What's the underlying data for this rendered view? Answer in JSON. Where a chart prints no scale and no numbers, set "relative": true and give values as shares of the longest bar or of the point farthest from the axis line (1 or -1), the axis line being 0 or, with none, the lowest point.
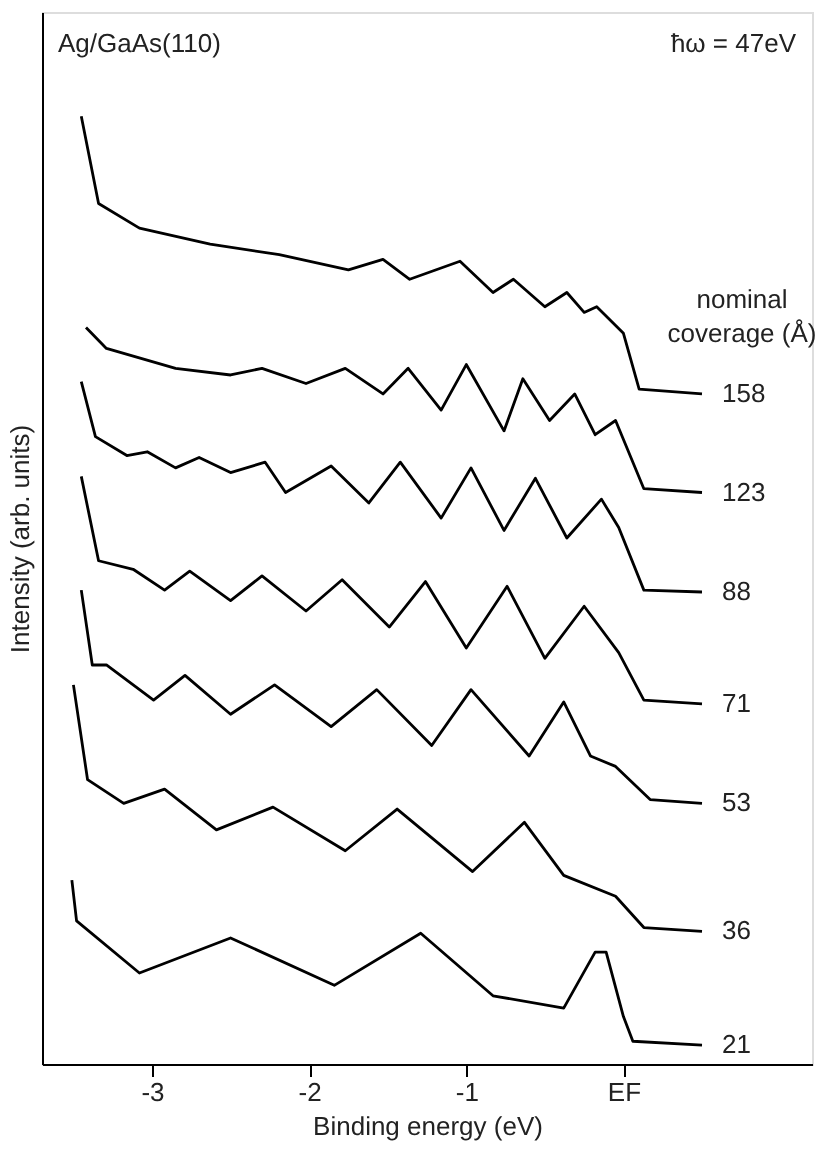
{
  "chart_data": {
    "type": "line",
    "relative": true,
    "xlabel": "Binding energy (eV)",
    "ylabel": "Intensity (arb. units)",
    "legend_title": "nominal coverage (Å)",
    "annotations": [
      "Ag/GaAs(110)",
      "ħω = 47eV"
    ],
    "xlim": [
      -3.7,
      1.2
    ],
    "xticks": [
      -3,
      -2,
      -1,
      {
        "value": 0,
        "label": "EF"
      }
    ],
    "grid": false,
    "marker": "none",
    "line_style": "solid",
    "series": [
      {
        "name": "21",
        "color": "#000000",
        "x": [
          -3.51,
          -3.48,
          -3.08,
          -2.5,
          -1.84,
          -1.29,
          -0.83,
          -0.38,
          -0.18,
          -0.11,
          0,
          0.06,
          0.5
        ],
        "values": [
          0.194,
          0.151,
          0.096,
          0.133,
          0.083,
          0.138,
          0.072,
          0.059,
          0.118,
          0.118,
          0.05,
          0.024,
          0.02
        ]
      },
      {
        "name": "36",
        "color": "#000000",
        "x": [
          -3.5,
          -3.41,
          -3.18,
          -2.92,
          -2.59,
          -2.23,
          -1.77,
          -1.44,
          -0.96,
          -0.63,
          -0.38,
          -0.05,
          0.13,
          0.5
        ],
        "values": [
          0.4,
          0.3,
          0.275,
          0.29,
          0.247,
          0.271,
          0.225,
          0.269,
          0.203,
          0.255,
          0.199,
          0.177,
          0.144,
          0.14
        ]
      },
      {
        "name": "53",
        "color": "#000000",
        "x": [
          -3.45,
          -3.38,
          -3.29,
          -2.99,
          -2.79,
          -2.5,
          -2.22,
          -1.86,
          -1.57,
          -1.22,
          -0.97,
          -0.6,
          -0.38,
          -0.21,
          -0.05,
          0.17,
          0.5
        ],
        "values": [
          0.5,
          0.421,
          0.421,
          0.384,
          0.41,
          0.369,
          0.4,
          0.356,
          0.395,
          0.336,
          0.395,
          0.325,
          0.382,
          0.325,
          0.314,
          0.279,
          0.275
        ]
      },
      {
        "name": "71",
        "color": "#000000",
        "x": [
          -3.45,
          -3.34,
          -3.12,
          -2.92,
          -2.76,
          -2.5,
          -2.3,
          -2.02,
          -1.79,
          -1.49,
          -1.26,
          -1.0,
          -0.74,
          -0.5,
          -0.25,
          -0.03,
          0.13,
          0.5
        ],
        "values": [
          0.62,
          0.531,
          0.522,
          0.5,
          0.52,
          0.489,
          0.515,
          0.478,
          0.511,
          0.461,
          0.509,
          0.439,
          0.504,
          0.428,
          0.483,
          0.434,
          0.384,
          0.38
        ]
      },
      {
        "name": "88",
        "color": "#000000",
        "x": [
          -3.45,
          -3.36,
          -3.16,
          -3.03,
          -2.85,
          -2.7,
          -2.5,
          -2.28,
          -2.15,
          -1.86,
          -1.62,
          -1.42,
          -1.16,
          -0.97,
          -0.76,
          -0.56,
          -0.36,
          -0.14,
          -0.03,
          0.13,
          0.5
        ],
        "values": [
          0.72,
          0.662,
          0.642,
          0.646,
          0.629,
          0.64,
          0.624,
          0.635,
          0.603,
          0.631,
          0.592,
          0.635,
          0.576,
          0.629,
          0.563,
          0.618,
          0.555,
          0.596,
          0.566,
          0.5,
          0.498
        ]
      },
      {
        "name": "123",
        "color": "#000000",
        "x": [
          -3.42,
          -3.29,
          -2.85,
          -2.5,
          -2.3,
          -2.02,
          -1.77,
          -1.53,
          -1.37,
          -1.16,
          -1.0,
          -0.76,
          -0.64,
          -0.47,
          -0.31,
          -0.18,
          -0.05,
          0.13,
          0.5
        ],
        "values": [
          0.777,
          0.755,
          0.734,
          0.727,
          0.734,
          0.718,
          0.734,
          0.707,
          0.734,
          0.69,
          0.738,
          0.668,
          0.723,
          0.679,
          0.707,
          0.664,
          0.679,
          0.607,
          0.603
        ]
      },
      {
        "name": "158",
        "color": "#000000",
        "x": [
          -3.45,
          -3.34,
          -3.08,
          -2.63,
          -2.19,
          -1.75,
          -1.53,
          -1.36,
          -1.04,
          -0.83,
          -0.7,
          -0.5,
          -0.36,
          -0.25,
          -0.17,
          0,
          0.1,
          0.5
        ],
        "values": [
          1,
          0.908,
          0.882,
          0.865,
          0.854,
          0.838,
          0.849,
          0.828,
          0.847,
          0.814,
          0.828,
          0.799,
          0.814,
          0.793,
          0.799,
          0.771,
          0.712,
          0.707
        ]
      }
    ]
  }
}
